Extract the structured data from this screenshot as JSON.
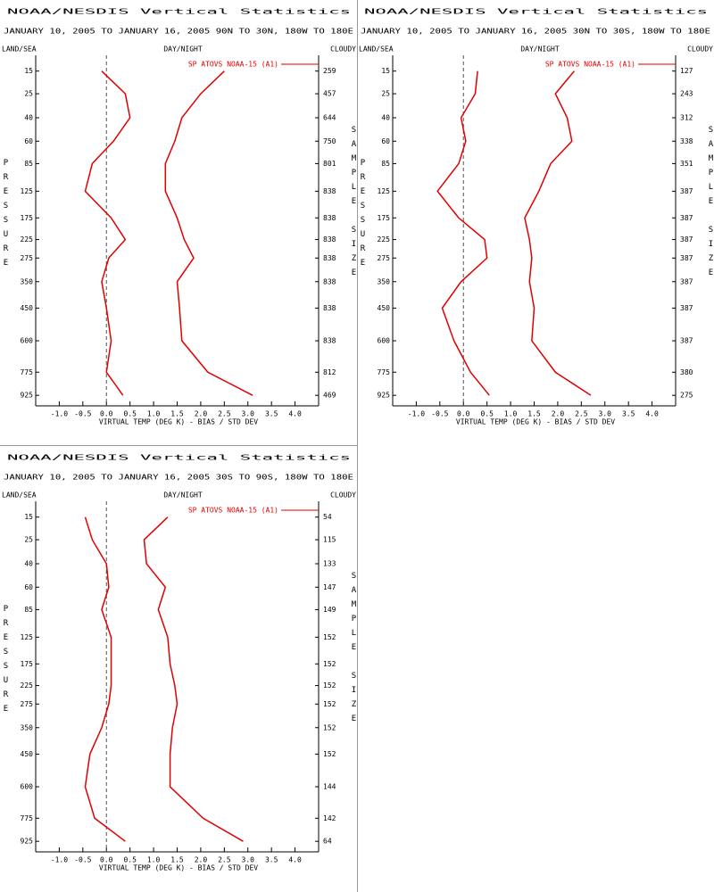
{
  "chart_data": [
    {
      "type": "line",
      "title": "NOAA/NESDIS Vertical Statistics",
      "subtitle": "JANUARY 10, 2005 TO JANUARY 16, 2005 90N TO 30N, 180W TO 180E",
      "left_label": "LAND/SEA",
      "center_label": "DAY/NIGHT",
      "right_label": "CLOUDY",
      "xlabel": "VIRTUAL TEMP (DEG K) - BIAS / STD DEV",
      "ylabel": "PRESSURE",
      "y2label": "SAMPLE SIZE",
      "y": [
        15,
        25,
        40,
        60,
        85,
        125,
        175,
        225,
        275,
        350,
        450,
        600,
        775,
        925
      ],
      "sample_size": [
        259,
        457,
        644,
        750,
        801,
        838,
        838,
        838,
        838,
        838,
        838,
        838,
        812,
        469
      ],
      "series": [
        {
          "name": "SP ATOVS NOAA-15 (A1)",
          "color": "#e00000",
          "values": [
            -0.1,
            0.4,
            0.5,
            0.15,
            -0.3,
            -0.45,
            0.1,
            0.4,
            0.05,
            -0.1,
            0.0,
            0.1,
            0.0,
            0.35
          ]
        },
        {
          "color": "#e00000",
          "values": [
            2.5,
            2.0,
            1.6,
            1.45,
            1.25,
            1.25,
            1.5,
            1.65,
            1.85,
            1.5,
            1.55,
            1.6,
            2.15,
            3.1
          ]
        }
      ],
      "xlim": [
        -1.5,
        4.5
      ],
      "xticks": [
        {
          "value": -1,
          "label": "-1.0"
        },
        -0.5,
        {
          "value": 0,
          "label": "0.0"
        },
        0.5,
        {
          "value": 1,
          "label": "1.0"
        },
        1.5,
        {
          "value": 2,
          "label": "2.0"
        },
        2.5,
        {
          "value": 3,
          "label": "3.0"
        },
        3.5,
        {
          "value": 4,
          "label": "4.0"
        }
      ],
      "ylim": [
        10,
        1000
      ],
      "yticks": [
        15,
        25,
        40,
        60,
        85,
        125,
        175,
        225,
        275,
        350,
        450,
        600,
        775,
        925
      ],
      "zero_line": true
    },
    {
      "type": "line",
      "title": "NOAA/NESDIS Vertical Statistics",
      "subtitle": "JANUARY 10, 2005 TO JANUARY 16, 2005 30N TO 30S, 180W TO 180E",
      "left_label": "LAND/SEA",
      "center_label": "DAY/NIGHT",
      "right_label": "CLOUDY",
      "xlabel": "VIRTUAL TEMP (DEG K) - BIAS / STD DEV",
      "ylabel": "PRESSURE",
      "y2label": "SAMPLE SIZE",
      "y": [
        15,
        25,
        40,
        60,
        85,
        125,
        175,
        225,
        275,
        350,
        450,
        600,
        775,
        925
      ],
      "sample_size": [
        127,
        243,
        312,
        338,
        351,
        387,
        387,
        387,
        387,
        387,
        387,
        387,
        380,
        275
      ],
      "series": [
        {
          "name": "SP ATOVS NOAA-15 (A1)",
          "color": "#e00000",
          "values": [
            0.3,
            0.25,
            -0.05,
            0.05,
            -0.1,
            -0.55,
            -0.1,
            0.45,
            0.5,
            -0.05,
            -0.45,
            -0.2,
            0.15,
            0.55
          ]
        },
        {
          "color": "#e00000",
          "values": [
            2.35,
            1.95,
            2.2,
            2.3,
            1.85,
            1.6,
            1.3,
            1.4,
            1.45,
            1.4,
            1.5,
            1.45,
            1.95,
            2.7
          ]
        }
      ],
      "xlim": [
        -1.5,
        4.5
      ],
      "xticks": [
        {
          "value": -1,
          "label": "-1.0"
        },
        -0.5,
        {
          "value": 0,
          "label": "0.0"
        },
        0.5,
        {
          "value": 1,
          "label": "1.0"
        },
        1.5,
        {
          "value": 2,
          "label": "2.0"
        },
        2.5,
        {
          "value": 3,
          "label": "3.0"
        },
        3.5,
        {
          "value": 4,
          "label": "4.0"
        }
      ],
      "ylim": [
        10,
        1000
      ],
      "yticks": [
        15,
        25,
        40,
        60,
        85,
        125,
        175,
        225,
        275,
        350,
        450,
        600,
        775,
        925
      ],
      "zero_line": true
    },
    {
      "type": "line",
      "title": "NOAA/NESDIS Vertical Statistics",
      "subtitle": "JANUARY 10, 2005 TO JANUARY 16, 2005 30S TO 90S, 180W TO 180E",
      "left_label": "LAND/SEA",
      "center_label": "DAY/NIGHT",
      "right_label": "CLOUDY",
      "xlabel": "VIRTUAL TEMP (DEG K) - BIAS / STD DEV",
      "ylabel": "PRESSURE",
      "y2label": "SAMPLE SIZE",
      "y": [
        15,
        25,
        40,
        60,
        85,
        125,
        175,
        225,
        275,
        350,
        450,
        600,
        775,
        925
      ],
      "sample_size": [
        54,
        115,
        133,
        147,
        149,
        152,
        152,
        152,
        152,
        152,
        152,
        144,
        142,
        64
      ],
      "series": [
        {
          "name": "SP ATOVS NOAA-15 (A1)",
          "color": "#e00000",
          "values": [
            -0.45,
            -0.3,
            0.0,
            0.05,
            -0.1,
            0.1,
            0.1,
            0.1,
            0.05,
            -0.1,
            -0.35,
            -0.45,
            -0.25,
            0.4
          ]
        },
        {
          "color": "#e00000",
          "values": [
            1.3,
            0.8,
            0.85,
            1.25,
            1.1,
            1.3,
            1.35,
            1.45,
            1.5,
            1.4,
            1.35,
            1.35,
            2.05,
            2.9
          ]
        }
      ],
      "xlim": [
        -1.5,
        4.5
      ],
      "xticks": [
        {
          "value": -1,
          "label": "-1.0"
        },
        -0.5,
        {
          "value": 0,
          "label": "0.0"
        },
        0.5,
        {
          "value": 1,
          "label": "1.0"
        },
        1.5,
        {
          "value": 2,
          "label": "2.0"
        },
        2.5,
        {
          "value": 3,
          "label": "3.0"
        },
        3.5,
        {
          "value": 4,
          "label": "4.0"
        }
      ],
      "ylim": [
        10,
        1000
      ],
      "yticks": [
        15,
        25,
        40,
        60,
        85,
        125,
        175,
        225,
        275,
        350,
        450,
        600,
        775,
        925
      ],
      "zero_line": true
    }
  ]
}
